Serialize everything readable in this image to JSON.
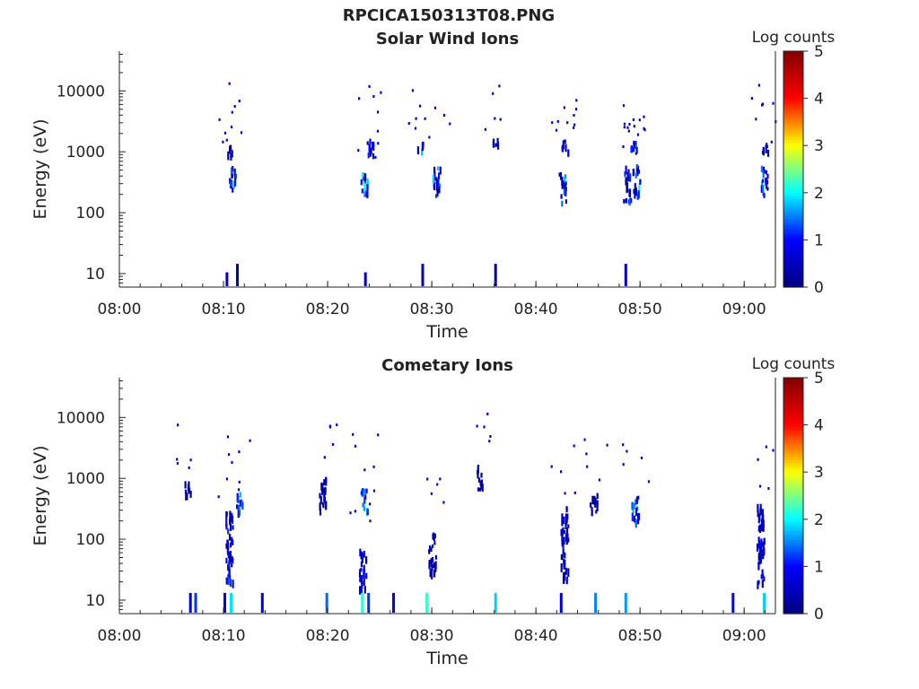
{
  "figure": {
    "title": "RPCICA150313T08.PNG"
  },
  "colors": {
    "colormap": [
      "#000080",
      "#0000ff",
      "#00ffff",
      "#ffff00",
      "#ff0000",
      "#800000"
    ],
    "axis": "#222222",
    "background": "#ffffff"
  },
  "chart_data": [
    {
      "type": "heatmap",
      "title": "Solar Wind Ions",
      "xlabel": "Time",
      "ylabel": "Energy (eV)",
      "yscale": "log",
      "ylim": [
        6,
        45000
      ],
      "xlim": [
        "08:00",
        "09:03"
      ],
      "xticks": [
        "08:00",
        "08:10",
        "08:20",
        "08:30",
        "08:40",
        "08:50",
        "09:00"
      ],
      "yticks": [
        "10",
        "100",
        "1000",
        "10000"
      ],
      "colorbar": {
        "label": "Log counts",
        "min": 0,
        "max": 5,
        "ticks": [
          "0",
          "1",
          "2",
          "3",
          "4",
          "5"
        ]
      },
      "grid": false,
      "clusters": [
        {
          "time": "08:10.8",
          "e_min": 250,
          "e_max": 650,
          "peak": 2.1
        },
        {
          "time": "08:10.5",
          "e_min": 900,
          "e_max": 1300,
          "peak": 0.7
        },
        {
          "time": "08:23.5",
          "e_min": 180,
          "e_max": 500,
          "peak": 2.3
        },
        {
          "time": "08:24.0",
          "e_min": 900,
          "e_max": 1800,
          "peak": 1.2
        },
        {
          "time": "08:28.8",
          "e_min": 1100,
          "e_max": 1600,
          "peak": 1.8
        },
        {
          "time": "08:30.4",
          "e_min": 200,
          "e_max": 600,
          "peak": 2.0
        },
        {
          "time": "08:36.0",
          "e_min": 1200,
          "e_max": 1700,
          "peak": 0.6
        },
        {
          "time": "08:42.5",
          "e_min": 150,
          "e_max": 500,
          "peak": 1.8
        },
        {
          "time": "08:42.8",
          "e_min": 1000,
          "e_max": 1600,
          "peak": 0.9
        },
        {
          "time": "08:48.7",
          "e_min": 150,
          "e_max": 600,
          "peak": 1.6
        },
        {
          "time": "08:49.6",
          "e_min": 200,
          "e_max": 700,
          "peak": 2.2
        },
        {
          "time": "08:49.3",
          "e_min": 1000,
          "e_max": 1600,
          "peak": 1.5
        },
        {
          "time": "09:01.9",
          "e_min": 200,
          "e_max": 600,
          "peak": 1.6
        },
        {
          "time": "09:01.9",
          "e_min": 1000,
          "e_max": 1400,
          "peak": 0.9
        }
      ],
      "low_energy_bars": [
        {
          "time": "08:10.2",
          "e": 8,
          "v": 0.5
        },
        {
          "time": "08:11.2",
          "e": 11,
          "v": 0.5
        },
        {
          "time": "08:23.5",
          "e": 8,
          "v": 0.5
        },
        {
          "time": "08:29.0",
          "e": 11,
          "v": 0.5
        },
        {
          "time": "08:36.0",
          "e": 11,
          "v": 0.5
        },
        {
          "time": "08:48.5",
          "e": 11,
          "v": 0.5
        }
      ]
    },
    {
      "type": "heatmap",
      "title": "Cometary Ions",
      "xlabel": "Time",
      "ylabel": "Energy (eV)",
      "yscale": "log",
      "ylim": [
        6,
        45000
      ],
      "xlim": [
        "08:00",
        "09:03"
      ],
      "xticks": [
        "08:00",
        "08:10",
        "08:20",
        "08:30",
        "08:40",
        "08:50",
        "09:00"
      ],
      "yticks": [
        "10",
        "100",
        "1000",
        "10000"
      ],
      "colorbar": {
        "label": "Log counts",
        "min": 0,
        "max": 5,
        "ticks": [
          "0",
          "1",
          "2",
          "3",
          "4",
          "5"
        ]
      },
      "grid": false,
      "clusters": [
        {
          "time": "08:10.5",
          "e_min": 20,
          "e_max": 300,
          "peak": 1.3
        },
        {
          "time": "08:11.5",
          "e_min": 300,
          "e_max": 600,
          "peak": 1.8
        },
        {
          "time": "08:23.3",
          "e_min": 15,
          "e_max": 80,
          "peak": 1.0
        },
        {
          "time": "08:23.5",
          "e_min": 300,
          "e_max": 700,
          "peak": 1.9
        },
        {
          "time": "08:30.0",
          "e_min": 30,
          "e_max": 150,
          "peak": 0.9
        },
        {
          "time": "08:34.5",
          "e_min": 700,
          "e_max": 1700,
          "peak": 0.8
        },
        {
          "time": "08:42.7",
          "e_min": 20,
          "e_max": 400,
          "peak": 0.9
        },
        {
          "time": "08:49.5",
          "e_min": 200,
          "e_max": 600,
          "peak": 1.9
        },
        {
          "time": "09:01.5",
          "e_min": 20,
          "e_max": 400,
          "peak": 1.0
        },
        {
          "time": "08:06.5",
          "e_min": 500,
          "e_max": 900,
          "peak": 0.5
        },
        {
          "time": "08:19.5",
          "e_min": 300,
          "e_max": 1200,
          "peak": 0.5
        },
        {
          "time": "08:45.5",
          "e_min": 300,
          "e_max": 600,
          "peak": 0.6
        }
      ],
      "low_energy_bars": [
        {
          "time": "08:06.7",
          "e": 10,
          "v": 0.8
        },
        {
          "time": "08:07.2",
          "e": 10,
          "v": 1.2
        },
        {
          "time": "08:10.0",
          "e": 10,
          "v": 1.0
        },
        {
          "time": "08:10.6",
          "e": 10,
          "v": 1.9
        },
        {
          "time": "08:13.6",
          "e": 10,
          "v": 0.7
        },
        {
          "time": "08:19.8",
          "e": 10,
          "v": 1.4
        },
        {
          "time": "08:23.2",
          "e": 10,
          "v": 2.2
        },
        {
          "time": "08:23.8",
          "e": 10,
          "v": 1.2
        },
        {
          "time": "08:26.2",
          "e": 10,
          "v": 1.0
        },
        {
          "time": "08:29.4",
          "e": 10,
          "v": 2.2
        },
        {
          "time": "08:36.0",
          "e": 10,
          "v": 1.8
        },
        {
          "time": "08:42.3",
          "e": 10,
          "v": 0.8
        },
        {
          "time": "08:45.6",
          "e": 10,
          "v": 1.5
        },
        {
          "time": "08:48.5",
          "e": 10,
          "v": 1.6
        },
        {
          "time": "08:58.8",
          "e": 10,
          "v": 1.0
        },
        {
          "time": "09:01.8",
          "e": 10,
          "v": 1.8
        }
      ]
    }
  ]
}
